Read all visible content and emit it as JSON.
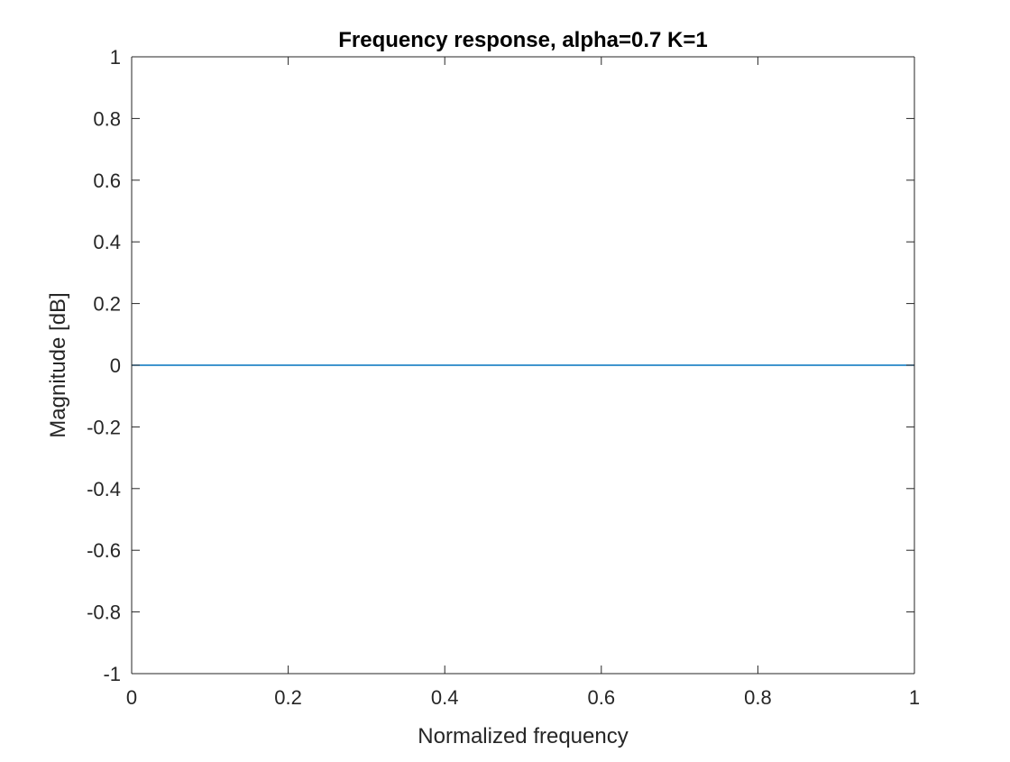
{
  "chart_data": {
    "type": "line",
    "title": "Frequency response, alpha=0.7 K=1",
    "xlabel": "Normalized frequency",
    "ylabel": "Magnitude [dB]",
    "xlim": [
      0,
      1
    ],
    "ylim": [
      -1,
      1
    ],
    "xticks": [
      0,
      0.2,
      0.4,
      0.6,
      0.8,
      1
    ],
    "xtick_labels": [
      "0",
      "0.2",
      "0.4",
      "0.6",
      "0.8",
      "1"
    ],
    "yticks": [
      -1,
      -0.8,
      -0.6,
      -0.4,
      -0.2,
      0,
      0.2,
      0.4,
      0.6,
      0.8,
      1
    ],
    "ytick_labels": [
      "-1",
      "-0.8",
      "-0.6",
      "-0.4",
      "-0.2",
      "0",
      "0.2",
      "0.4",
      "0.6",
      "0.8",
      "1"
    ],
    "grid": false,
    "box": true,
    "series": [
      {
        "color": "#0072bd",
        "x": [
          0,
          0.1,
          0.2,
          0.3,
          0.4,
          0.5,
          0.6,
          0.7,
          0.8,
          0.9,
          1
        ],
        "y": [
          0,
          0,
          0,
          0,
          0,
          0,
          0,
          0,
          0,
          0,
          0
        ]
      }
    ]
  }
}
